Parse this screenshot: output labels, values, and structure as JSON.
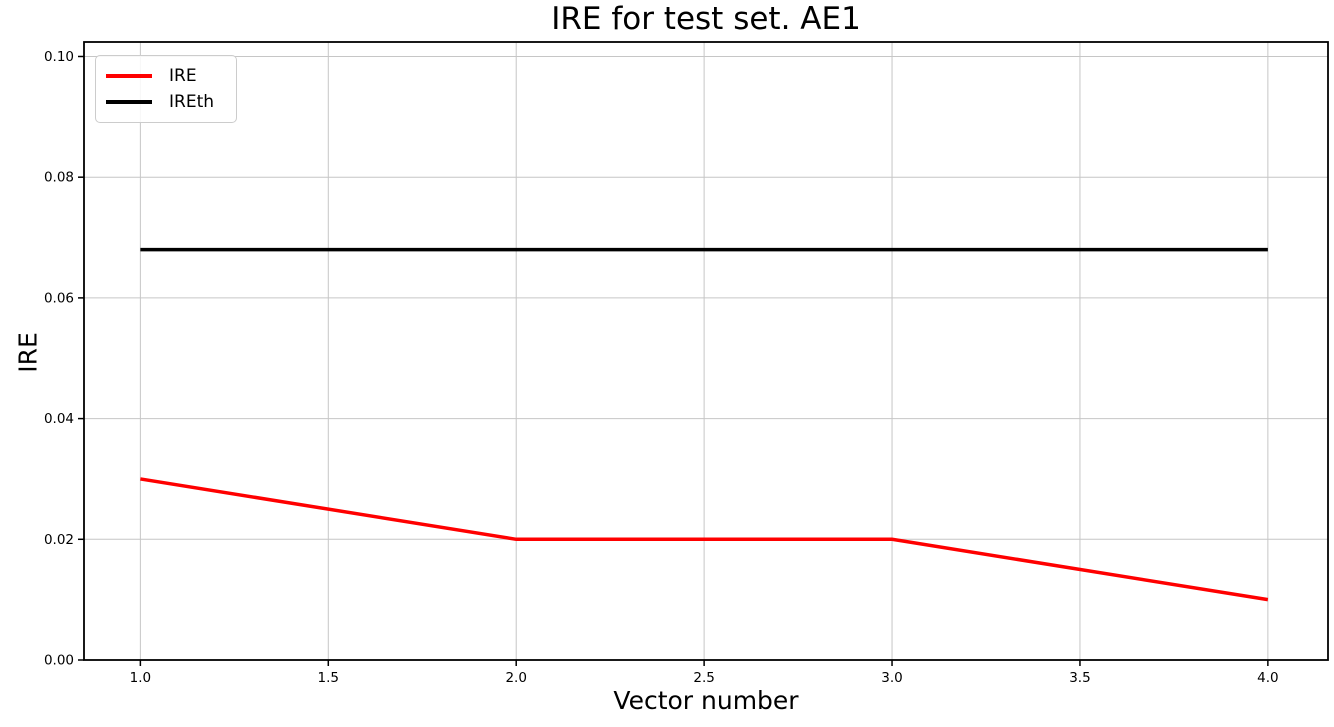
{
  "figure": {
    "background": "#ffffff"
  },
  "chart_data": {
    "type": "line",
    "title": "IRE for test set. AE1",
    "xlabel": "Vector number",
    "ylabel": "IRE",
    "x": [
      1,
      2,
      3,
      4
    ],
    "series": [
      {
        "name": "IRE",
        "color": "#ff0000",
        "values": [
          0.03,
          0.02,
          0.02,
          0.01
        ]
      },
      {
        "name": "IREth",
        "color": "#000000",
        "values": [
          0.068,
          0.068,
          0.068,
          0.068
        ]
      }
    ],
    "xlim": [
      0.85,
      4.16
    ],
    "ylim": [
      0,
      0.1024
    ],
    "xticks": [
      1.0,
      1.5,
      2.0,
      2.5,
      3.0,
      3.5,
      4.0
    ],
    "xtick_labels": [
      "1.0",
      "1.5",
      "2.0",
      "2.5",
      "3.0",
      "3.5",
      "4.0"
    ],
    "yticks": [
      0.0,
      0.02,
      0.04,
      0.06,
      0.08,
      0.1
    ],
    "ytick_labels": [
      "0.00",
      "0.02",
      "0.04",
      "0.06",
      "0.08",
      "0.10"
    ],
    "grid": true,
    "grid_color": "#c6c6c6",
    "spine_color": "#000000",
    "tick_label_color": "#000000",
    "line_width": 3.5,
    "legend_position": "upper left"
  }
}
